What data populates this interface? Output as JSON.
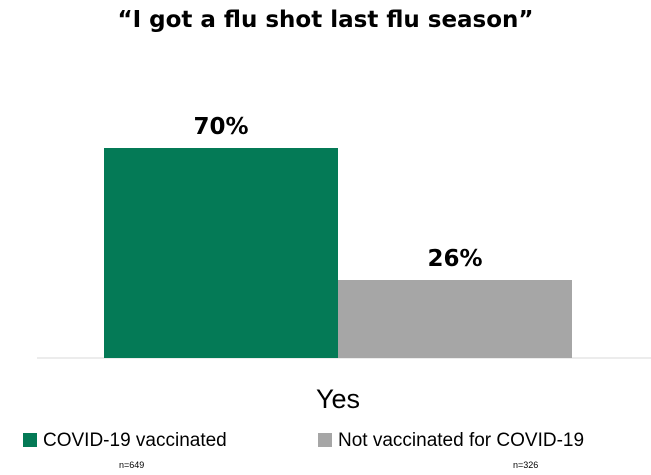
{
  "chart_data": {
    "type": "bar",
    "title": "“I got a flu shot last flu season”",
    "categories": [
      "Yes"
    ],
    "ylim": [
      0,
      100
    ],
    "series": [
      {
        "name": "COVID-19 vaccinated",
        "note": "n=649",
        "values": [
          70
        ],
        "label": "70%",
        "color": "#047a56"
      },
      {
        "name": "Not vaccinated for COVID-19",
        "note": "n=326",
        "values": [
          26
        ],
        "label": "26%",
        "color": "#a6a6a6"
      }
    ],
    "grid": false,
    "legend_position": "bottom"
  }
}
